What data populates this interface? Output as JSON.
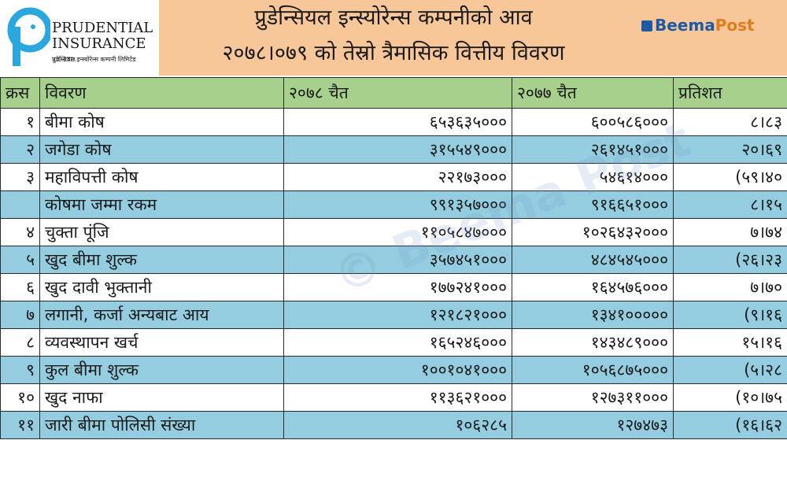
{
  "logo": {
    "name_line1": "PRUDENTIAL",
    "name_line2": "INSURANCE",
    "company_suffix": "CO.LTD.",
    "subtitle": "प्रुडेन्सियल इन्स्योरेन्स कम्पनी लिमिटेड",
    "mark_color": "#2aa7df"
  },
  "title": {
    "line1": "प्रुडेन्सियल इन्स्योरेन्स कम्पनीको आव",
    "line2": "२०७८।०७९ को तेस्रो त्रैमासिक वित्तीय विवरण"
  },
  "brand": {
    "part1": "Beema",
    "part2": "Post"
  },
  "watermark": "© Beema Post",
  "table": {
    "headers": [
      "क्रस",
      "विवरण",
      "२०७८ चैत",
      "२०७७ चैत",
      "प्रतिशत"
    ],
    "rows": [
      {
        "sn": "१",
        "label": "बीमा कोष",
        "v2078": "६५३६३५०००",
        "v2077": "६००५८६०००",
        "pct": "८।८३"
      },
      {
        "sn": "२",
        "label": "जगेडा कोष",
        "v2078": "३१५५४९०००",
        "v2077": "२६१४५१०००",
        "pct": "२०।६९"
      },
      {
        "sn": "३",
        "label": "महाविपत्ती कोष",
        "v2078": "२२१७३०००",
        "v2077": "५४६१४०००",
        "pct": "(५९।४०"
      },
      {
        "sn": "",
        "label": "कोषमा जम्मा रकम",
        "v2078": "९९१३५७०००",
        "v2077": "९१६६५१०००",
        "pct": "८।१५"
      },
      {
        "sn": "४",
        "label": "चुक्ता पूंजि",
        "v2078": "११०५८४७०००",
        "v2077": "१०२६४३२०००",
        "pct": "७।७४"
      },
      {
        "sn": "५",
        "label": "खुद बीमा शुल्क",
        "v2078": "३५७४५१०००",
        "v2077": "४८४५४५०००",
        "pct": "(२६।२३"
      },
      {
        "sn": "६",
        "label": "खुद दावी भुक्तानी",
        "v2078": "१७७२४१०००",
        "v2077": "१६४५७६०००",
        "pct": "७।७०"
      },
      {
        "sn": "७",
        "label": "लगानी, कर्जा अन्यबाट आय",
        "v2078": "१२१८२१०००",
        "v2077": "१३४१०००००",
        "pct": "(९।१६"
      },
      {
        "sn": "८",
        "label": "व्यवस्थापन खर्च",
        "v2078": "१६५२४६०००",
        "v2077": "१४३४८९०००",
        "pct": "१५।१६"
      },
      {
        "sn": "९",
        "label": "कुल बीमा शुल्क",
        "v2078": "१००१०४१०००",
        "v2077": "१०५६८७५०००",
        "pct": "(५।२८"
      },
      {
        "sn": "१०",
        "label": "खुद नाफा",
        "v2078": "११३६२१०००",
        "v2077": "१२७३११०००",
        "pct": "(१०।७५"
      },
      {
        "sn": "११",
        "label": "जारी बीमा पोलिसी संख्या",
        "v2078": "१०६२८५",
        "v2077": "१२७४७३",
        "pct": "(१६।६२"
      }
    ]
  }
}
